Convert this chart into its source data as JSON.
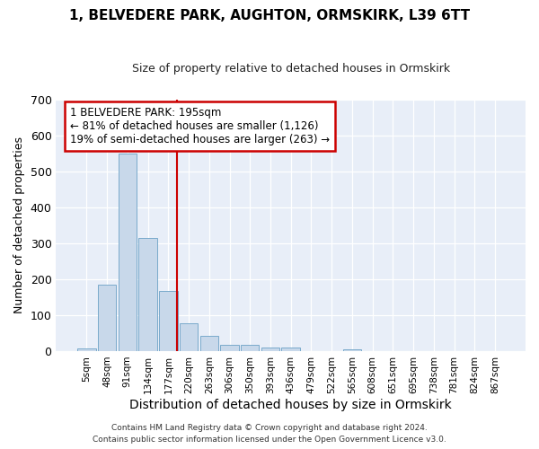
{
  "title": "1, BELVEDERE PARK, AUGHTON, ORMSKIRK, L39 6TT",
  "subtitle": "Size of property relative to detached houses in Ormskirk",
  "xlabel": "Distribution of detached houses by size in Ormskirk",
  "ylabel": "Number of detached properties",
  "bar_labels": [
    "5sqm",
    "48sqm",
    "91sqm",
    "134sqm",
    "177sqm",
    "220sqm",
    "263sqm",
    "306sqm",
    "350sqm",
    "393sqm",
    "436sqm",
    "479sqm",
    "522sqm",
    "565sqm",
    "608sqm",
    "651sqm",
    "695sqm",
    "738sqm",
    "781sqm",
    "824sqm",
    "867sqm"
  ],
  "bar_values": [
    8,
    185,
    550,
    315,
    168,
    78,
    43,
    17,
    17,
    10,
    11,
    0,
    0,
    6,
    0,
    0,
    0,
    0,
    0,
    0,
    0
  ],
  "bar_color": "#c8d8ea",
  "bar_edge_color": "#7aaacb",
  "vline_color": "#cc0000",
  "annotation_text": "1 BELVEDERE PARK: 195sqm\n← 81% of detached houses are smaller (1,126)\n19% of semi-detached houses are larger (263) →",
  "annotation_box_color": "#cc0000",
  "ylim": [
    0,
    700
  ],
  "yticks": [
    0,
    100,
    200,
    300,
    400,
    500,
    600,
    700
  ],
  "footer_line1": "Contains HM Land Registry data © Crown copyright and database right 2024.",
  "footer_line2": "Contains public sector information licensed under the Open Government Licence v3.0.",
  "bg_color": "#ffffff",
  "plot_bg_color": "#e8eef8"
}
